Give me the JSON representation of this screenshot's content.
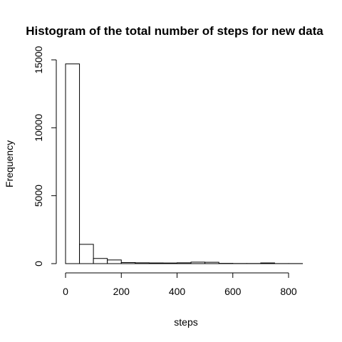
{
  "chart_data": {
    "type": "bar",
    "title": "Histogram of the total number of steps for new data",
    "xlabel": "steps",
    "ylabel": "Frequency",
    "x_ticks": [
      0,
      200,
      400,
      600,
      800
    ],
    "y_ticks": [
      0,
      5000,
      10000,
      15000
    ],
    "xlim": [
      0,
      850
    ],
    "ylim": [
      0,
      15500
    ],
    "bins": [
      {
        "start": 0,
        "end": 50,
        "count": 14700
      },
      {
        "start": 50,
        "end": 100,
        "count": 1420
      },
      {
        "start": 100,
        "end": 150,
        "count": 380
      },
      {
        "start": 150,
        "end": 200,
        "count": 270
      },
      {
        "start": 200,
        "end": 250,
        "count": 80
      },
      {
        "start": 250,
        "end": 300,
        "count": 60
      },
      {
        "start": 300,
        "end": 350,
        "count": 50
      },
      {
        "start": 350,
        "end": 400,
        "count": 45
      },
      {
        "start": 400,
        "end": 450,
        "count": 60
      },
      {
        "start": 450,
        "end": 500,
        "count": 110
      },
      {
        "start": 500,
        "end": 550,
        "count": 100
      },
      {
        "start": 550,
        "end": 600,
        "count": 20
      },
      {
        "start": 600,
        "end": 650,
        "count": 10
      },
      {
        "start": 650,
        "end": 700,
        "count": 10
      },
      {
        "start": 700,
        "end": 750,
        "count": 50
      },
      {
        "start": 750,
        "end": 800,
        "count": 5
      },
      {
        "start": 800,
        "end": 850,
        "count": 5
      }
    ]
  }
}
